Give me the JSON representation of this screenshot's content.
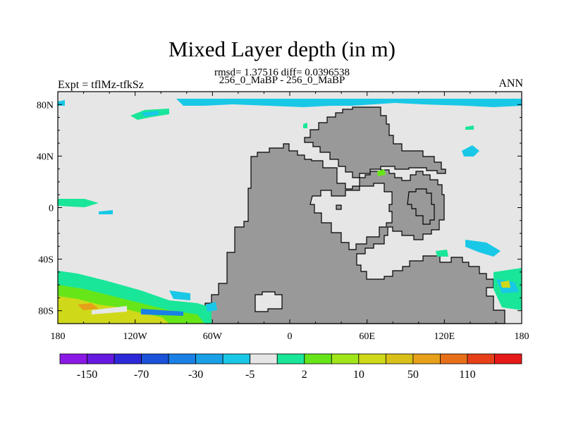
{
  "chart_data": {
    "type": "heatmap",
    "title": "Mixed Layer depth (in m)",
    "subtitle_line1": "rmsd= 1.37516 diff= 0.0396538",
    "subtitle_line2": "256_0_MaBP - 256_0_MaBP",
    "left_label": "Expt = tflMz-tfkSz",
    "right_label": "ANN",
    "x_ticks": [
      "180",
      "120W",
      "60W",
      "0",
      "60E",
      "120E",
      "180"
    ],
    "x_tick_values": [
      -180,
      -120,
      -60,
      0,
      60,
      120,
      180
    ],
    "y_ticks": [
      "80N",
      "40N",
      "0",
      "40S",
      "80S"
    ],
    "y_tick_values": [
      80,
      40,
      0,
      -40,
      -80
    ],
    "xlim": [
      -180,
      180
    ],
    "ylim": [
      -90,
      90
    ],
    "land_color": "#999999",
    "ocean_color": "#e6e6e6",
    "colorbar": {
      "colors": [
        "#8b19e6",
        "#6619e0",
        "#2d29d9",
        "#1a52d9",
        "#1a80e6",
        "#19a0e6",
        "#19c8e6",
        "#e6e6e6",
        "#19e699",
        "#66e619",
        "#a0e619",
        "#cfd919",
        "#d9c019",
        "#e6a019",
        "#e67019",
        "#e64019",
        "#e61919"
      ],
      "labels": [
        "-150",
        "-70",
        "-30",
        "-5",
        "2",
        "10",
        "50",
        "110"
      ]
    }
  }
}
